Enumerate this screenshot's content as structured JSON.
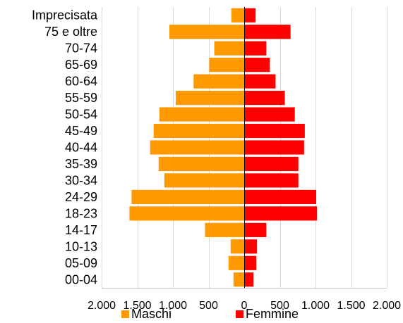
{
  "chart_data": {
    "type": "bar",
    "orientation": "horizontal",
    "layout": "population-pyramid",
    "categories": [
      "Imprecisata",
      "75 e oltre",
      "70-74",
      "65-69",
      "60-64",
      "55-59",
      "50-54",
      "45-49",
      "40-44",
      "35-39",
      "30-34",
      "24-29",
      "18-23",
      "14-17",
      "10-13",
      "05-09",
      "00-04"
    ],
    "series": [
      {
        "name": "Maschi",
        "color": "#FF9900",
        "side": "left",
        "values": [
          180,
          1050,
          420,
          490,
          710,
          960,
          1190,
          1270,
          1320,
          1200,
          1120,
          1580,
          1610,
          550,
          190,
          220,
          150
        ]
      },
      {
        "name": "Femmine",
        "color": "#FF0000",
        "side": "right",
        "values": [
          160,
          650,
          310,
          360,
          440,
          570,
          710,
          850,
          840,
          760,
          760,
          1010,
          1020,
          310,
          180,
          170,
          130
        ]
      }
    ],
    "xlim": [
      -2000,
      2000
    ],
    "x_ticks": [
      -2000,
      -1500,
      -1000,
      -500,
      0,
      500,
      1000,
      1500,
      2000
    ],
    "x_tick_labels": [
      "2.000",
      "1.500",
      "1.000",
      "500",
      "0",
      "500",
      "1.000",
      "1.500",
      "2.000"
    ],
    "grid": true,
    "legend_position": "bottom",
    "title": "",
    "xlabel": "",
    "ylabel": ""
  }
}
